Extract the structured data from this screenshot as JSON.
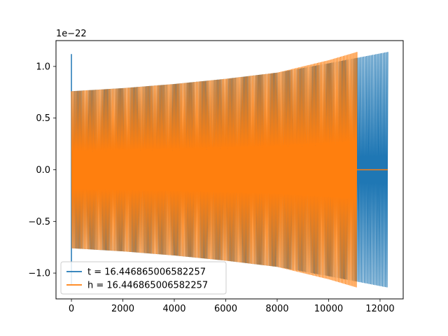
{
  "chart_data": {
    "type": "line",
    "title": "",
    "xlabel": "",
    "ylabel": "",
    "y_offset_label": "1e−22",
    "xlim": [
      -600,
      12900
    ],
    "ylim": [
      -1.25,
      1.25
    ],
    "xticks": [
      0,
      2000,
      4000,
      6000,
      8000,
      10000,
      12000
    ],
    "xtick_labels": [
      "0",
      "2000",
      "4000",
      "6000",
      "8000",
      "10000",
      "12000"
    ],
    "yticks": [
      -1.0,
      -0.5,
      0.0,
      0.5,
      1.0
    ],
    "ytick_labels": [
      "−1.0",
      "−0.5",
      "0.0",
      "0.5",
      "1.0"
    ],
    "grid": false,
    "legend_position": "lower-left",
    "series": [
      {
        "name": "t = 16.446865006582257",
        "color": "#1f77b4",
        "x_start": 0,
        "x_end": 12300,
        "envelope": {
          "x": [
            0,
            2000,
            4000,
            6000,
            8000,
            10000,
            12300
          ],
          "amplitude": [
            0.76,
            0.79,
            0.83,
            0.88,
            0.94,
            1.03,
            1.14
          ]
        },
        "initial_spike": {
          "x": 0,
          "max": 1.12,
          "min": -1.12
        }
      },
      {
        "name": "h = 16.446865006582257",
        "color": "#ff7f0e",
        "x_start": 0,
        "x_end": 11100,
        "flat_after": {
          "x": [
            11100,
            12300
          ],
          "value": 0.0
        },
        "envelope": {
          "x": [
            0,
            2000,
            4000,
            6000,
            8000,
            10000,
            11100
          ],
          "amplitude": [
            0.76,
            0.79,
            0.83,
            0.88,
            0.94,
            1.06,
            1.14
          ]
        }
      }
    ]
  }
}
